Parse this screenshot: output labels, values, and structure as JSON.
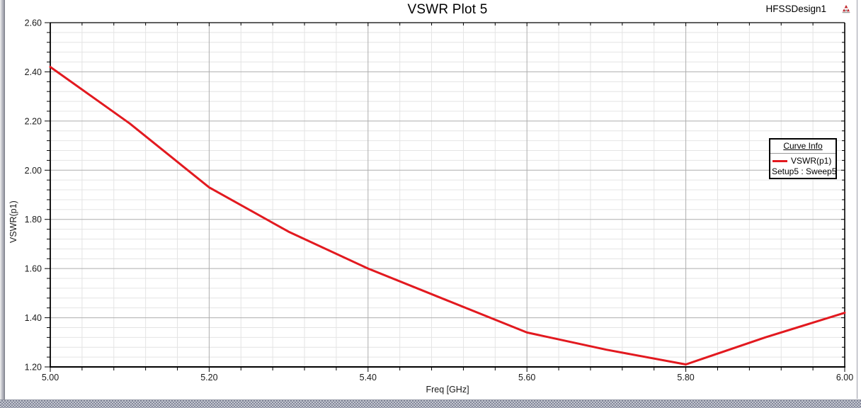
{
  "window": {
    "design_name": "HFSSDesign1",
    "logo_icon": "ansys-triangle-logo",
    "logo_colors": {
      "red": "#c0272d",
      "gray": "#8a8a8a"
    }
  },
  "chart_data": {
    "type": "line",
    "title": "VSWR Plot 5",
    "xlabel": "Freq [GHz]",
    "ylabel": "VSWR(p1)",
    "xlim": [
      5.0,
      6.0
    ],
    "ylim": [
      1.2,
      2.6
    ],
    "xticks": [
      "5.00",
      "5.20",
      "5.40",
      "5.60",
      "5.80",
      "6.00"
    ],
    "yticks": [
      "2.60",
      "2.40",
      "2.20",
      "2.00",
      "1.80",
      "1.60",
      "1.40",
      "1.20"
    ],
    "minor_per_major": 5,
    "grid": true,
    "series": [
      {
        "name": "VSWR(p1)",
        "color": "#e2191f",
        "x": [
          5.0,
          5.1,
          5.2,
          5.3,
          5.4,
          5.5,
          5.6,
          5.7,
          5.8,
          5.9,
          6.0
        ],
        "y": [
          2.42,
          2.19,
          1.93,
          1.75,
          1.6,
          1.47,
          1.34,
          1.27,
          1.21,
          1.32,
          1.42
        ]
      }
    ],
    "legend": {
      "title": "Curve Info",
      "position": "right",
      "entries": [
        {
          "swatch_color": "#e2191f",
          "label": "VSWR(p1)",
          "sublabel": "Setup5 : Sweep5"
        }
      ]
    },
    "colors": {
      "grid_minor": "#e4e4e4",
      "grid_major": "#aeaeae",
      "frame": "#000000",
      "tick": "#000000",
      "label": "#1a1a1a"
    }
  }
}
